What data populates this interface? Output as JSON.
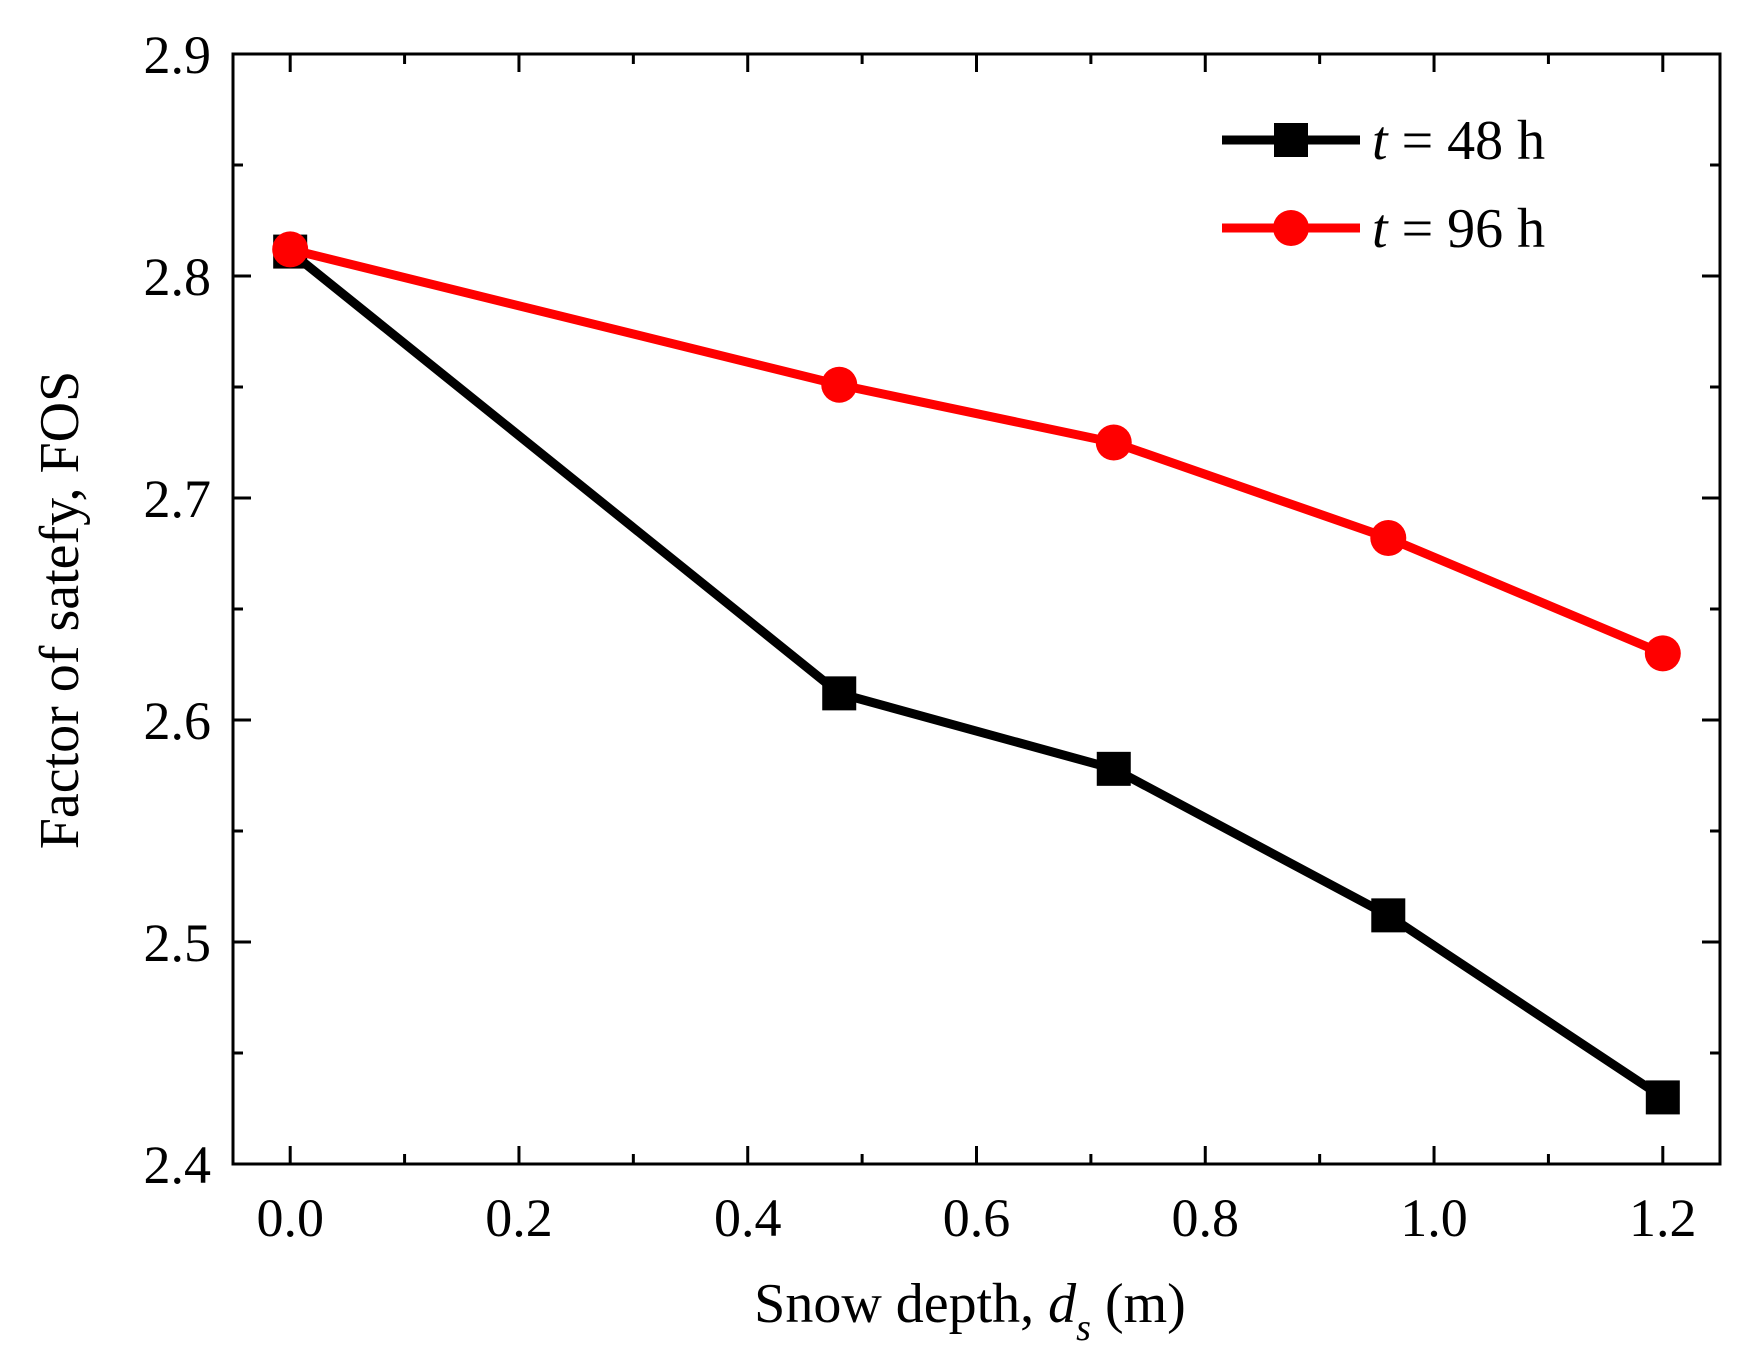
{
  "chart_data": {
    "type": "line",
    "title": "",
    "xlabel": {
      "main": "Snow depth, ",
      "var": "d",
      "sub": "s",
      "unit": " (m)"
    },
    "ylabel": "Factor of satefy, FOS",
    "xlim": [
      -0.05,
      1.25
    ],
    "ylim": [
      2.4,
      2.9
    ],
    "xticks": [
      0.0,
      0.2,
      0.4,
      0.6,
      0.8,
      1.0,
      1.2
    ],
    "xtick_labels": [
      "0.0",
      "0.2",
      "0.4",
      "0.6",
      "0.8",
      "1.0",
      "1.2"
    ],
    "xminor": [
      0.1,
      0.3,
      0.5,
      0.7,
      0.9,
      1.1
    ],
    "yticks": [
      2.4,
      2.5,
      2.6,
      2.7,
      2.8,
      2.9
    ],
    "ytick_labels": [
      "2.4",
      "2.5",
      "2.6",
      "2.7",
      "2.8",
      "2.9"
    ],
    "yminor": [
      2.45,
      2.55,
      2.65,
      2.75,
      2.85
    ],
    "grid": false,
    "legend_position": "top-right",
    "x": [
      0.0,
      0.48,
      0.72,
      0.96,
      1.2
    ],
    "series": [
      {
        "name_var": "t",
        "name_rest": " = 48 h",
        "values": [
          2.811,
          2.612,
          2.578,
          2.512,
          2.43
        ],
        "color": "#000000",
        "marker": "square"
      },
      {
        "name_var": "t",
        "name_rest": " = 96 h",
        "values": [
          2.812,
          2.751,
          2.725,
          2.682,
          2.63
        ],
        "color": "#ff0000",
        "marker": "circle"
      }
    ]
  }
}
